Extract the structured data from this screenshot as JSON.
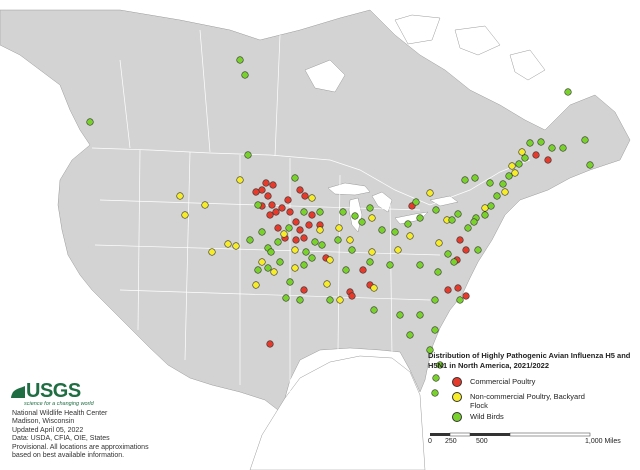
{
  "legend": {
    "title": "Distribution of Highly Pathogenic Avian Influenza H5 and H5N1 in North America, 2021/2022",
    "items": [
      {
        "label": "Commercial Poultry",
        "color": "#e53b2c"
      },
      {
        "label": "Non-commercial Poultry, Backyard Flock",
        "color": "#f7ec2a"
      },
      {
        "label": "Wild Birds",
        "color": "#79d22b"
      }
    ]
  },
  "logo": {
    "name": "USGS",
    "tagline": "science for a changing world",
    "icon": "usgs-wave-icon"
  },
  "credits": [
    "National Wildlife Health Center",
    "Madison, Wisconsin",
    "Updated April 05, 2022",
    "Data: USDA, CFIA, OIE, States",
    "Provisional. All locations are approximations",
    "based on best available information."
  ],
  "scale_bar": {
    "labels": [
      "0",
      "250",
      "500",
      "1,000 Miles"
    ]
  },
  "colors": {
    "land": "#d3d3d3",
    "water": "#ffffff",
    "border": "#ffffff"
  }
}
